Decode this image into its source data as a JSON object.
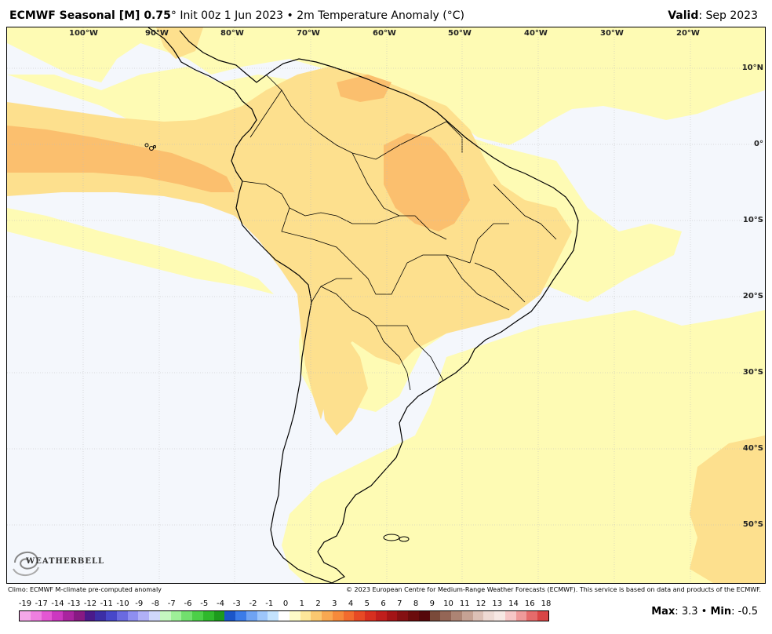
{
  "header": {
    "model": "ECMWF Seasonal [M] 0.75",
    "degree_mark": "°",
    "init": "Init 00z 1 Jun 2023",
    "bullet": "•",
    "field": "2m Temperature Anomaly (",
    "unit": "°C",
    "field_close": ")",
    "valid_label": "Valid",
    "valid_value": ": Sep 2023"
  },
  "map": {
    "longitude_labels": [
      "100°W",
      "90°W",
      "80°W",
      "70°W",
      "60°W",
      "50°W",
      "40°W",
      "30°W",
      "20°W"
    ],
    "latitude_labels": [
      "10°N",
      "0°",
      "10°S",
      "20°S",
      "30°S",
      "40°S",
      "50°S"
    ],
    "colors": {
      "ocean": "#f4f7fc",
      "anomaly_0_1": "#fefbb4",
      "anomaly_1_2": "#fde08e",
      "anomaly_2_3": "#fbbf6e",
      "anomaly_3_4": "#f8a05c",
      "coastline": "#000000"
    }
  },
  "logo": {
    "text": "WEATHERBELL",
    "icon": "swirl-logo-icon"
  },
  "credits": {
    "left": "Climo: ECMWF M-climate pre-computed anomaly",
    "right": "© 2023 European Centre for Medium-Range Weather Forecasts (ECMWF). This service is based on data and products of the ECMWF."
  },
  "colorbar": {
    "labels": [
      "-19",
      "-17",
      "-14",
      "-13",
      "-12",
      "-11",
      "-10",
      "-9",
      "-8",
      "-7",
      "-6",
      "-5",
      "-4",
      "-3",
      "-2",
      "-1",
      "0",
      "1",
      "2",
      "3",
      "4",
      "5",
      "6",
      "7",
      "8",
      "9",
      "10",
      "11",
      "12",
      "13",
      "14",
      "16",
      "18"
    ],
    "colors": [
      "#f5a8e8",
      "#ee7fe0",
      "#e457d3",
      "#cc38c0",
      "#a9249f",
      "#871a83",
      "#4a1a8a",
      "#3c2ea6",
      "#4747c9",
      "#6a6ae0",
      "#8e8ef0",
      "#b0b0f7",
      "#d0d8fb",
      "#c6f7c0",
      "#9ef098",
      "#72e06e",
      "#4ccf48",
      "#2fb82c",
      "#1d9a1d",
      "#1b55c8",
      "#3b7be8",
      "#6fa3f3",
      "#9dc6fb",
      "#c3e3fe",
      "#ffffff",
      "#fdfbc8",
      "#fde79a",
      "#fbc870",
      "#f9a851",
      "#f68a3b",
      "#f26b2e",
      "#e74a25",
      "#d72f1f",
      "#c01e1c",
      "#a31416",
      "#851012",
      "#6b0c0c",
      "#55080a",
      "#7a4a3a",
      "#946656",
      "#ad8474",
      "#c6a294",
      "#dcc0b6",
      "#eedad4",
      "#f7e8e4",
      "#f6c6c6",
      "#ef9a9a",
      "#e56b6b",
      "#d94545"
    ]
  },
  "stats": {
    "max_label": "Max",
    "max_value": "3.3",
    "bullet": "•",
    "min_label": "Min",
    "min_value": "-0.5"
  }
}
